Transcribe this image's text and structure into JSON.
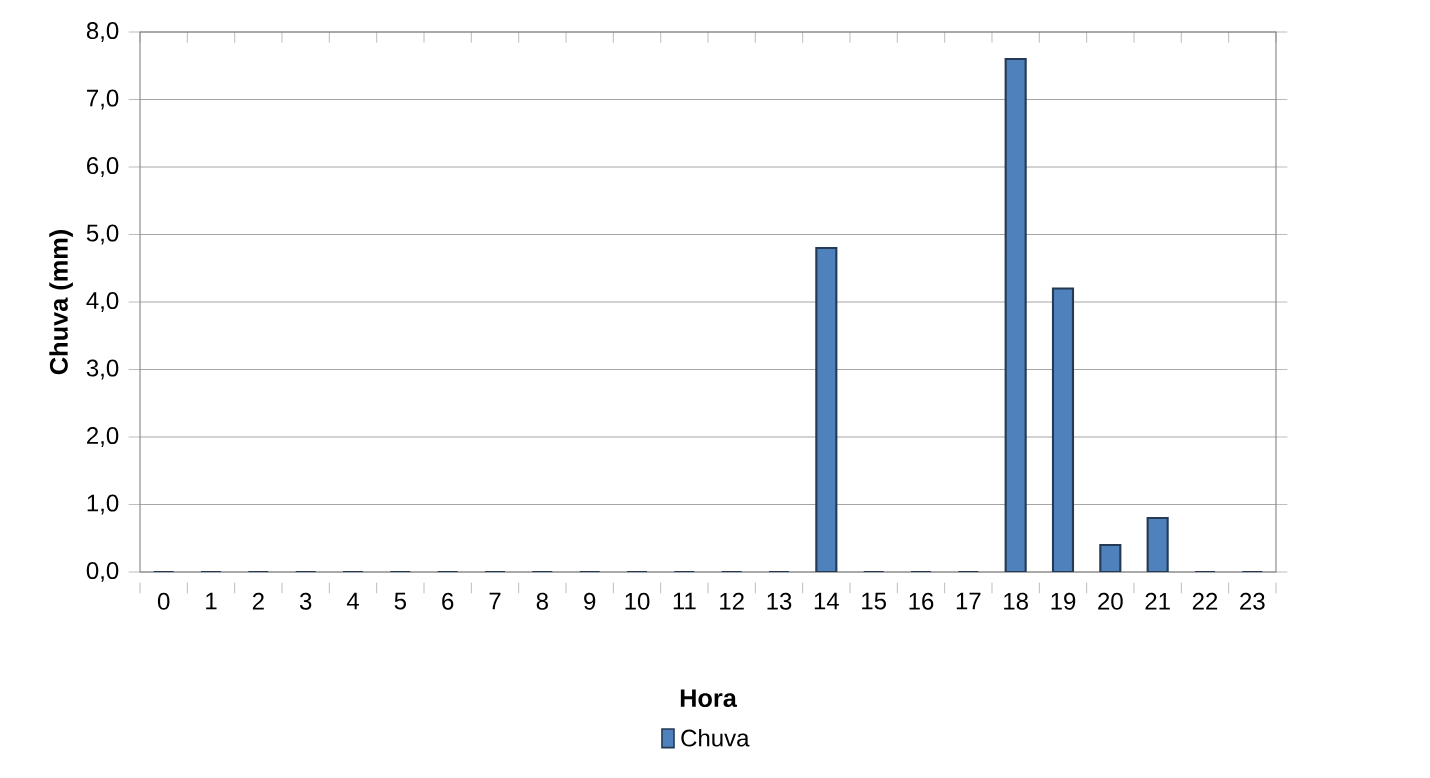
{
  "chart_data": {
    "type": "bar",
    "xlabel": "Hora",
    "ylabel": "Chuva (mm)",
    "categories": [
      "0",
      "1",
      "2",
      "3",
      "4",
      "5",
      "6",
      "7",
      "8",
      "9",
      "10",
      "11",
      "12",
      "13",
      "14",
      "15",
      "16",
      "17",
      "18",
      "19",
      "20",
      "21",
      "22",
      "23"
    ],
    "series": [
      {
        "name": "Chuva",
        "color": "#4f81bd",
        "values": [
          0,
          0,
          0,
          0,
          0,
          0,
          0,
          0,
          0,
          0,
          0,
          0,
          0,
          0,
          4.8,
          0,
          0,
          0,
          7.6,
          4.2,
          0.4,
          0.8,
          0,
          0
        ]
      }
    ],
    "ylim": [
      0,
      8
    ],
    "yticks": [
      {
        "value": 0,
        "label": "0,0"
      },
      {
        "value": 1,
        "label": "1,0"
      },
      {
        "value": 2,
        "label": "2,0"
      },
      {
        "value": 3,
        "label": "3,0"
      },
      {
        "value": 4,
        "label": "4,0"
      },
      {
        "value": 5,
        "label": "5,0"
      },
      {
        "value": 6,
        "label": "6,0"
      },
      {
        "value": 7,
        "label": "7,0"
      },
      {
        "value": 8,
        "label": "8,0"
      }
    ],
    "grid": "y",
    "legend": "bottom"
  }
}
